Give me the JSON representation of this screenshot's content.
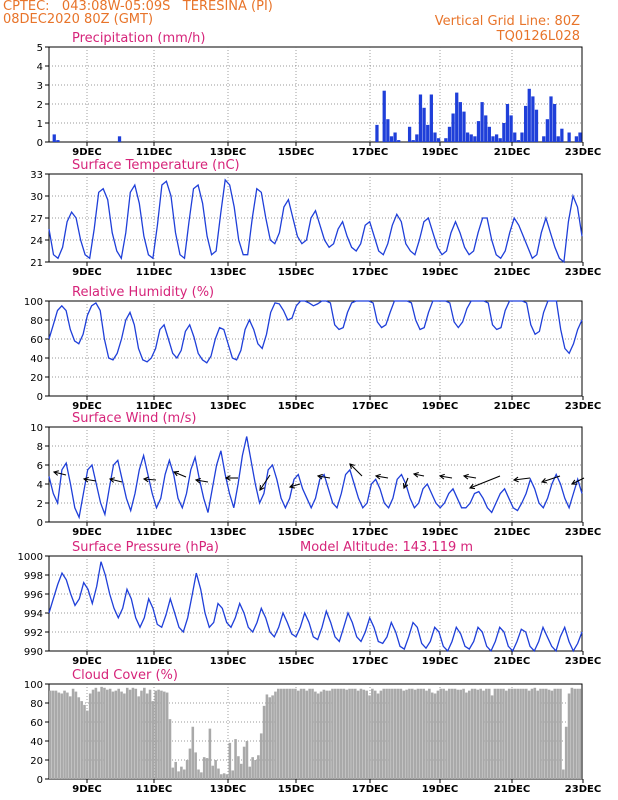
{
  "header": {
    "line1": "CPTEC:   043:08W-05:09S   TERESINA (PI)",
    "line2": "08DEC2020 80Z (GMT)",
    "grid_note": "Vertical Grid Line: 80Z",
    "code": "TQ0126L028"
  },
  "colors": {
    "header": "#e8742a",
    "title": "#d6247a",
    "series": "#1f3fd9",
    "cloud": "#a9a9a9",
    "axis": "#000000"
  },
  "x_ticks": [
    "9DEC",
    "11DEC",
    "13DEC",
    "15DEC",
    "17DEC",
    "19DEC",
    "21DEC",
    "23DEC"
  ],
  "time_axis": {
    "start": "08DEC2020",
    "end": "23DEC2020",
    "step_hours": 3
  },
  "chart_data": [
    {
      "id": "precip",
      "type": "bar",
      "title": "Precipitation (mm/h)",
      "ylim": [
        0,
        5
      ],
      "yticks": [
        0,
        1,
        2,
        3,
        4,
        5
      ],
      "color": "#1f3fd9",
      "values": [
        0,
        0.4,
        0.1,
        0,
        0,
        0,
        0,
        0,
        0,
        0,
        0,
        0,
        0,
        0,
        0,
        0,
        0,
        0,
        0,
        0.3,
        0,
        0,
        0,
        0,
        0,
        0,
        0,
        0,
        0,
        0,
        0,
        0,
        0,
        0,
        0,
        0,
        0,
        0,
        0,
        0,
        0,
        0,
        0,
        0,
        0,
        0,
        0,
        0,
        0,
        0,
        0,
        0,
        0,
        0,
        0,
        0,
        0,
        0,
        0,
        0,
        0,
        0,
        0,
        0,
        0,
        0,
        0,
        0,
        0,
        0,
        0,
        0,
        0,
        0,
        0,
        0,
        0,
        0,
        0,
        0,
        0,
        0,
        0,
        0,
        0,
        0,
        0,
        0,
        0,
        0,
        0.9,
        0,
        2.7,
        1.2,
        0.3,
        0.5,
        0.1,
        0,
        0,
        0.8,
        0.1,
        0.4,
        2.5,
        1.8,
        0.9,
        2.5,
        0.5,
        0.2,
        0,
        0.2,
        0.8,
        1.5,
        2.6,
        2.1,
        1.6,
        0.5,
        0.4,
        0.3,
        1.1,
        2.1,
        1.4,
        0.8,
        0.3,
        0.4,
        0.2,
        1.0,
        2.0,
        1.4,
        0.5,
        0.1,
        0.5,
        1.9,
        2.8,
        2.4,
        1.7,
        0,
        0.3,
        1.2,
        2.4,
        2.0,
        0.3,
        0.7,
        0,
        0.5,
        0,
        0.3,
        0.5
      ]
    },
    {
      "id": "temp",
      "type": "line",
      "title": "Surface Temperature (nC)",
      "ylim": [
        21,
        33
      ],
      "yticks": [
        21,
        24,
        27,
        30,
        33
      ],
      "color": "#1f3fd9",
      "values": [
        25.5,
        22.0,
        21.5,
        23.0,
        26.5,
        27.8,
        27.0,
        24.0,
        22.0,
        21.5,
        25.5,
        30.5,
        31.0,
        29.5,
        25.0,
        22.5,
        21.5,
        25.0,
        30.5,
        31.5,
        29.0,
        24.5,
        22.0,
        21.5,
        26.0,
        31.5,
        32.0,
        30.0,
        25.0,
        22.0,
        21.5,
        26.5,
        31.0,
        31.5,
        29.0,
        24.5,
        22.0,
        22.5,
        27.5,
        32.2,
        31.5,
        28.5,
        24.0,
        22.0,
        22.0,
        27.0,
        31.0,
        30.5,
        27.0,
        24.0,
        23.5,
        25.0,
        28.5,
        29.5,
        27.0,
        24.5,
        23.5,
        24.0,
        27.0,
        28.0,
        26.0,
        24.0,
        23.0,
        23.5,
        25.5,
        26.5,
        24.5,
        23.0,
        22.5,
        23.5,
        26.0,
        26.5,
        24.5,
        22.5,
        22.0,
        23.5,
        26.0,
        27.5,
        26.5,
        23.5,
        22.5,
        22.0,
        24.0,
        26.5,
        27.0,
        25.0,
        23.0,
        22.0,
        22.5,
        25.0,
        26.5,
        25.0,
        23.0,
        22.0,
        22.5,
        25.0,
        27.0,
        27.0,
        24.0,
        22.0,
        21.5,
        22.5,
        25.0,
        27.0,
        26.0,
        24.5,
        23.0,
        21.5,
        22.0,
        25.0,
        27.0,
        25.0,
        23.0,
        21.5,
        21.0,
        26.5,
        30.0,
        28.5,
        24.5
      ]
    },
    {
      "id": "rh",
      "type": "line",
      "title": "Relative Humidity (%)",
      "ylim": [
        0,
        100
      ],
      "yticks": [
        0,
        20,
        40,
        60,
        80,
        100
      ],
      "color": "#1f3fd9",
      "values": [
        60,
        75,
        90,
        95,
        90,
        70,
        58,
        55,
        65,
        85,
        95,
        98,
        90,
        60,
        40,
        38,
        45,
        60,
        80,
        88,
        75,
        50,
        38,
        36,
        40,
        50,
        70,
        75,
        60,
        45,
        40,
        48,
        68,
        75,
        62,
        45,
        38,
        35,
        42,
        60,
        72,
        70,
        55,
        40,
        38,
        48,
        70,
        80,
        70,
        55,
        50,
        65,
        88,
        98,
        97,
        90,
        80,
        82,
        95,
        100,
        100,
        98,
        95,
        97,
        100,
        100,
        98,
        75,
        70,
        72,
        88,
        98,
        100,
        100,
        100,
        100,
        98,
        78,
        72,
        75,
        88,
        100,
        100,
        100,
        100,
        98,
        80,
        70,
        72,
        88,
        100,
        100,
        100,
        100,
        98,
        78,
        72,
        78,
        92,
        100,
        100,
        100,
        100,
        98,
        75,
        70,
        72,
        90,
        100,
        100,
        100,
        100,
        98,
        75,
        65,
        68,
        88,
        100,
        100,
        100,
        70,
        50,
        45,
        55,
        70,
        80
      ]
    },
    {
      "id": "wind",
      "type": "line",
      "title": "Surface Wind (m/s)",
      "ylim": [
        0,
        10
      ],
      "yticks": [
        0,
        2,
        4,
        6,
        8,
        10
      ],
      "color": "#1f3fd9",
      "values": [
        4.8,
        3.0,
        2.0,
        5.5,
        6.2,
        4.0,
        1.5,
        0.5,
        3.0,
        5.5,
        6.0,
        4.0,
        2.0,
        0.8,
        3.5,
        6.0,
        6.5,
        4.5,
        2.5,
        1.2,
        3.0,
        5.5,
        7.0,
        5.0,
        3.0,
        1.5,
        2.5,
        5.0,
        6.5,
        5.0,
        2.5,
        1.5,
        3.0,
        5.5,
        6.8,
        4.5,
        2.5,
        1.0,
        3.5,
        6.0,
        7.5,
        5.0,
        3.0,
        1.5,
        4.0,
        7.0,
        9.0,
        6.5,
        4.0,
        2.0,
        3.0,
        5.5,
        6.0,
        4.5,
        2.5,
        1.5,
        2.5,
        4.5,
        5.0,
        3.5,
        2.5,
        1.5,
        2.5,
        4.5,
        5.0,
        3.5,
        2.0,
        1.5,
        3.0,
        5.0,
        5.5,
        4.0,
        2.5,
        1.5,
        2.0,
        4.0,
        4.5,
        3.5,
        2.0,
        1.5,
        2.5,
        4.5,
        5.0,
        4.0,
        2.5,
        1.5,
        2.0,
        3.5,
        4.0,
        3.0,
        2.0,
        1.5,
        2.0,
        3.0,
        3.5,
        2.5,
        1.5,
        1.5,
        2.0,
        3.0,
        3.2,
        2.5,
        1.5,
        1.0,
        2.0,
        3.0,
        3.5,
        2.5,
        1.5,
        1.2,
        2.0,
        3.0,
        4.5,
        3.5,
        2.0,
        1.5,
        2.5,
        4.0,
        5.0,
        4.0,
        2.5,
        1.5,
        3.0,
        4.5,
        3.0
      ]
    },
    {
      "id": "pres",
      "type": "line",
      "title": "Surface Pressure (hPa)",
      "annotation": "Model Altitude: 143.119 m",
      "ylim": [
        990,
        1000
      ],
      "yticks": [
        990,
        992,
        994,
        996,
        998,
        1000
      ],
      "color": "#1f3fd9",
      "values": [
        994.0,
        995.5,
        997.0,
        998.2,
        997.5,
        996.0,
        994.8,
        995.5,
        997.2,
        996.5,
        995.0,
        996.8,
        999.4,
        998.0,
        996.0,
        994.5,
        993.5,
        994.5,
        996.5,
        995.5,
        993.5,
        992.5,
        993.5,
        995.5,
        994.5,
        992.8,
        992.5,
        993.8,
        995.5,
        994.0,
        992.5,
        992.0,
        993.5,
        995.8,
        998.2,
        996.5,
        994.0,
        992.5,
        993.0,
        995.0,
        994.5,
        993.0,
        992.5,
        993.5,
        995.0,
        994.0,
        992.5,
        992.0,
        993.0,
        994.5,
        993.5,
        992.0,
        991.5,
        992.5,
        994.0,
        993.0,
        991.8,
        991.5,
        992.5,
        994.0,
        993.0,
        991.5,
        991.2,
        992.5,
        994.2,
        993.0,
        991.5,
        991.0,
        992.5,
        994.0,
        993.0,
        991.5,
        991.0,
        992.0,
        993.5,
        992.5,
        991.0,
        990.8,
        991.5,
        993.0,
        992.0,
        990.5,
        990.2,
        991.5,
        993.0,
        992.5,
        990.8,
        990.3,
        991.0,
        992.5,
        992.0,
        990.5,
        990.0,
        991.0,
        992.5,
        991.8,
        990.5,
        990.2,
        991.0,
        992.5,
        992.0,
        990.5,
        990.0,
        991.0,
        992.5,
        992.0,
        990.5,
        990.0,
        991.0,
        992.3,
        992.0,
        990.5,
        990.0,
        991.0,
        992.5,
        991.5,
        990.5,
        990.0,
        991.5,
        992.5,
        991.0,
        990.0,
        990.8,
        992.0
      ]
    },
    {
      "id": "cloud",
      "type": "bar",
      "title": "Cloud Cover (%)",
      "ylim": [
        0,
        100
      ],
      "yticks": [
        0,
        20,
        40,
        60,
        80,
        100
      ],
      "color": "#a9a9a9",
      "values": [
        93,
        93,
        93,
        91,
        90,
        93,
        91,
        87,
        95,
        92,
        86,
        82,
        78,
        72,
        90,
        94,
        96,
        92,
        97,
        96,
        94,
        95,
        92,
        93,
        95,
        92,
        90,
        96,
        94,
        96,
        95,
        87,
        93,
        96,
        90,
        94,
        82,
        93,
        94,
        93,
        92,
        91,
        63,
        12,
        18,
        8,
        13,
        10,
        20,
        32,
        55,
        28,
        10,
        7,
        23,
        22,
        53,
        14,
        20,
        11,
        5,
        6,
        5,
        38,
        9,
        42,
        24,
        16,
        34,
        40,
        13,
        23,
        20,
        25,
        48,
        77,
        89,
        86,
        88,
        92,
        95,
        95,
        95,
        95,
        95,
        95,
        95,
        93,
        95,
        95,
        93,
        95,
        95,
        92,
        90,
        92,
        94,
        93,
        93,
        95,
        95,
        95,
        95,
        95,
        94,
        95,
        95,
        95,
        93,
        95,
        94,
        93,
        88,
        95,
        93,
        90,
        93,
        95,
        95,
        95,
        95,
        95,
        95,
        95,
        93,
        94,
        95,
        95,
        94,
        95,
        95,
        95,
        93,
        95,
        91,
        90,
        93,
        95,
        95,
        93,
        95,
        95,
        95,
        94,
        94,
        95,
        91,
        93,
        95,
        95,
        94,
        95,
        93,
        95,
        95,
        88,
        95,
        95,
        95,
        95,
        93,
        95,
        95,
        95,
        95,
        95,
        95,
        95,
        93,
        95,
        96,
        93,
        95,
        95,
        95,
        94,
        93,
        95,
        95,
        95,
        10,
        55,
        90,
        96,
        95,
        95,
        95
      ]
    }
  ]
}
